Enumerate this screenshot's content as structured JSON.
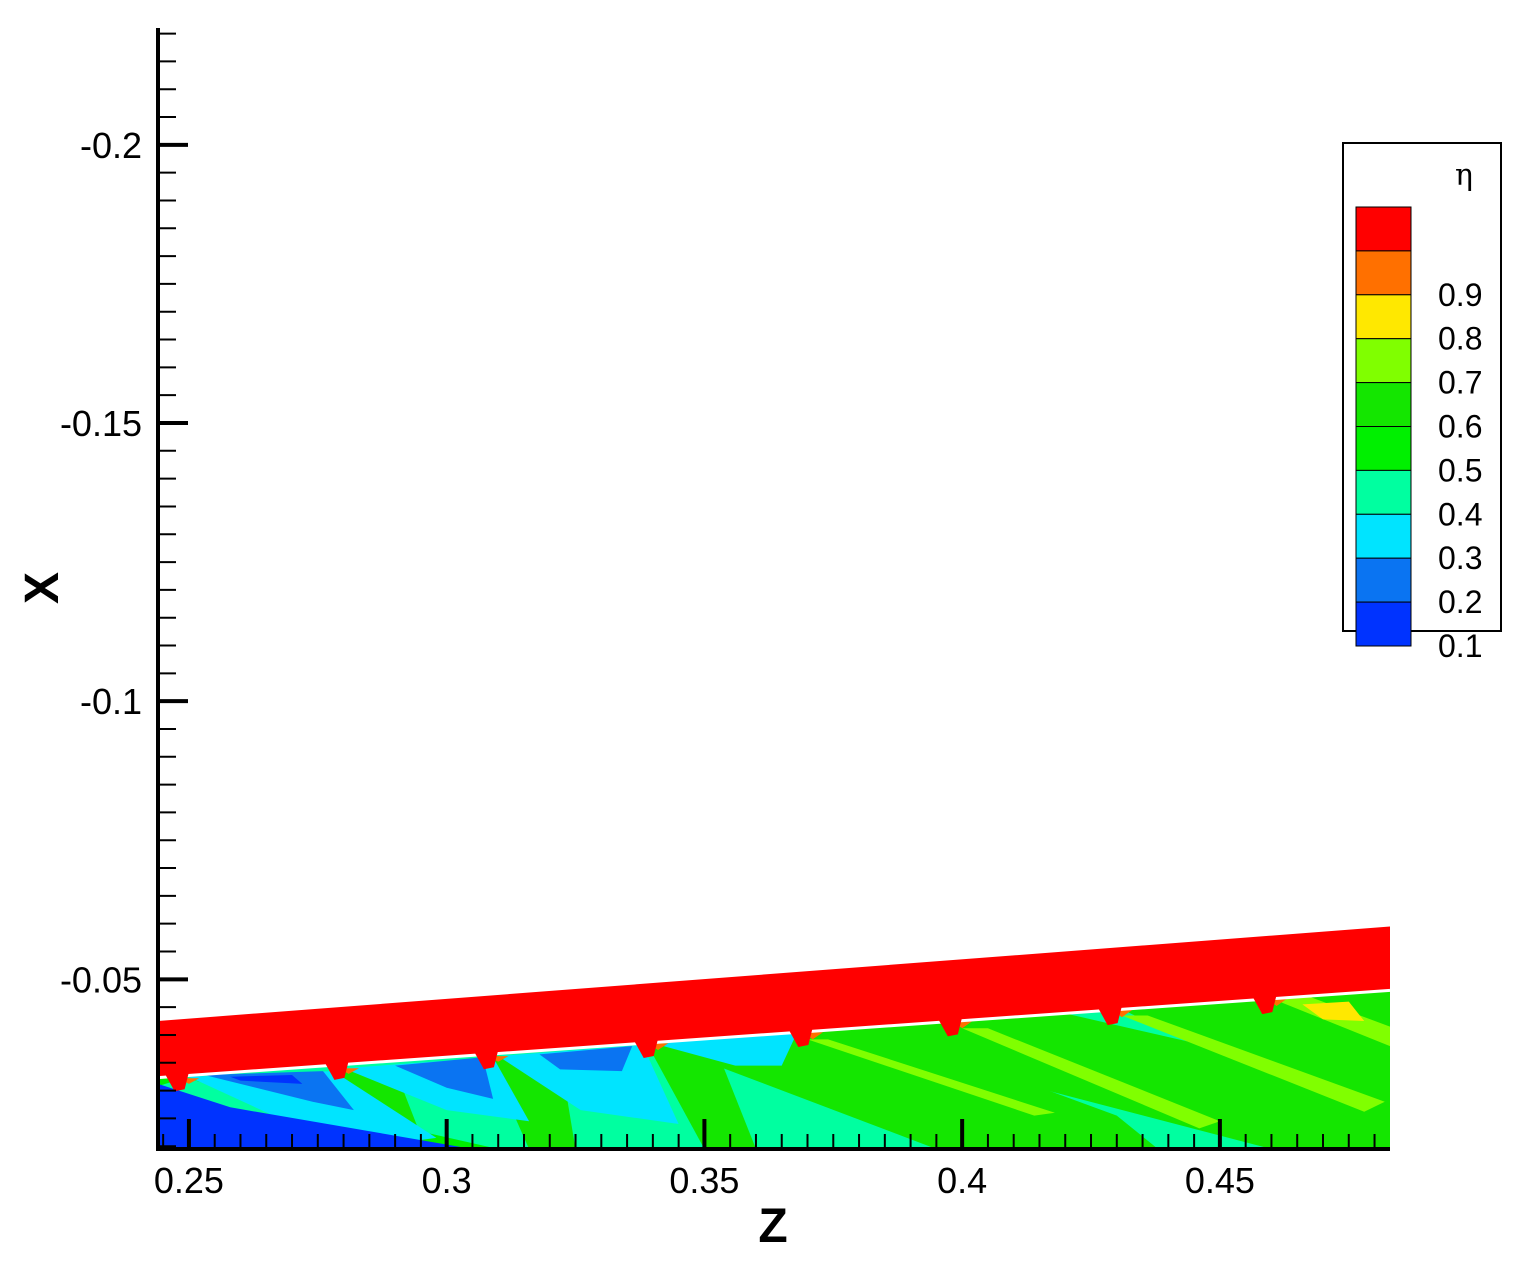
{
  "chart_data": {
    "type": "heatmap",
    "title": "",
    "xlabel": "Z",
    "ylabel": "X",
    "xlim": [
      0.244,
      0.483
    ],
    "ylim": [
      -0.0195,
      -0.221
    ],
    "y_axis_inverted": true,
    "x_major_ticks": [
      0.25,
      0.3,
      0.35,
      0.4,
      0.45
    ],
    "x_tick_labels": [
      "0.25",
      "0.3",
      "0.35",
      "0.4",
      "0.45"
    ],
    "y_major_ticks": [
      -0.2,
      -0.15,
      -0.1,
      -0.05
    ],
    "y_tick_labels": [
      "-0.2",
      "-0.15",
      "-0.1",
      "-0.05"
    ],
    "legend": {
      "title": "η",
      "placement": "right",
      "levels": [
        {
          "label": "0.1",
          "color": "#0033ff"
        },
        {
          "label": "0.2",
          "color": "#0a74f2"
        },
        {
          "label": "0.3",
          "color": "#00e4ff"
        },
        {
          "label": "0.4",
          "color": "#00ffa0"
        },
        {
          "label": "0.5",
          "color": "#00f000"
        },
        {
          "label": "0.6",
          "color": "#14e600"
        },
        {
          "label": "0.7",
          "color": "#80ff00"
        },
        {
          "label": "0.8",
          "color": "#ffe800"
        },
        {
          "label": "0.9",
          "color": "#ff7000"
        },
        {
          "label": "",
          "color": "#ff0000"
        }
      ]
    },
    "wall_band": {
      "color": "#ff0000",
      "bottom_line": [
        [
          0.244,
          -0.0325
        ],
        [
          0.483,
          -0.0482
        ]
      ],
      "top_line": [
        [
          0.244,
          -0.0425
        ],
        [
          0.483,
          -0.0595
        ]
      ]
    },
    "holes_z": [
      0.248,
      0.279,
      0.308,
      0.339,
      0.369,
      0.398,
      0.429,
      0.459
    ],
    "field_regions": [
      {
        "eta": 0.4,
        "points": [
          [
            0.244,
            -0.0195
          ],
          [
            0.483,
            -0.0195
          ],
          [
            0.483,
            -0.0482
          ],
          [
            0.244,
            -0.0325
          ]
        ]
      },
      {
        "eta": 0.6,
        "points": [
          [
            0.338,
            -0.0395
          ],
          [
            0.377,
            -0.0435
          ],
          [
            0.43,
            -0.0255
          ],
          [
            0.438,
            -0.0195
          ],
          [
            0.395,
            -0.0195
          ]
        ]
      },
      {
        "eta": 0.6,
        "points": [
          [
            0.369,
            -0.0415
          ],
          [
            0.41,
            -0.046
          ],
          [
            0.483,
            -0.0305
          ],
          [
            0.483,
            -0.0195
          ],
          [
            0.46,
            -0.0195
          ]
        ]
      },
      {
        "eta": 0.6,
        "points": [
          [
            0.429,
            -0.0455
          ],
          [
            0.462,
            -0.0478
          ],
          [
            0.483,
            -0.045
          ],
          [
            0.483,
            -0.0215
          ]
        ]
      },
      {
        "eta": 0.6,
        "points": [
          [
            0.461,
            -0.0482
          ],
          [
            0.483,
            -0.0482
          ],
          [
            0.483,
            -0.044
          ]
        ]
      },
      {
        "eta": 0.6,
        "points": [
          [
            0.339,
            -0.0382
          ],
          [
            0.352,
            -0.0382
          ],
          [
            0.36,
            -0.0195
          ],
          [
            0.35,
            -0.0195
          ]
        ]
      },
      {
        "eta": 0.6,
        "points": [
          [
            0.308,
            -0.0362
          ],
          [
            0.322,
            -0.0362
          ],
          [
            0.325,
            -0.0195
          ],
          [
            0.316,
            -0.0195
          ]
        ]
      },
      {
        "eta": 0.6,
        "points": [
          [
            0.279,
            -0.0338
          ],
          [
            0.29,
            -0.0338
          ],
          [
            0.296,
            -0.0195
          ],
          [
            0.286,
            -0.0195
          ]
        ]
      },
      {
        "eta": 0.7,
        "points": [
          [
            0.4,
            -0.0412
          ],
          [
            0.405,
            -0.0412
          ],
          [
            0.45,
            -0.0245
          ],
          [
            0.446,
            -0.0232
          ]
        ]
      },
      {
        "eta": 0.7,
        "points": [
          [
            0.431,
            -0.0435
          ],
          [
            0.436,
            -0.0435
          ],
          [
            0.482,
            -0.028
          ],
          [
            0.478,
            -0.0262
          ]
        ]
      },
      {
        "eta": 0.7,
        "points": [
          [
            0.461,
            -0.0462
          ],
          [
            0.467,
            -0.047
          ],
          [
            0.483,
            -0.0415
          ],
          [
            0.483,
            -0.038
          ]
        ]
      },
      {
        "eta": 0.7,
        "points": [
          [
            0.37,
            -0.0392
          ],
          [
            0.374,
            -0.0392
          ],
          [
            0.418,
            -0.026
          ],
          [
            0.414,
            -0.0255
          ]
        ]
      },
      {
        "eta": 0.8,
        "points": [
          [
            0.466,
            -0.0455
          ],
          [
            0.475,
            -0.046
          ],
          [
            0.478,
            -0.0425
          ],
          [
            0.47,
            -0.0428
          ]
        ]
      },
      {
        "eta": 0.5,
        "points": [
          [
            0.244,
            -0.0325
          ],
          [
            0.248,
            -0.0325
          ],
          [
            0.31,
            -0.0195
          ],
          [
            0.296,
            -0.0195
          ],
          [
            0.244,
            -0.021
          ]
        ]
      },
      {
        "eta": 0.4,
        "points": [
          [
            0.244,
            -0.0308
          ],
          [
            0.249,
            -0.0322
          ],
          [
            0.296,
            -0.023
          ],
          [
            0.292,
            -0.0205
          ],
          [
            0.244,
            -0.0218
          ]
        ]
      },
      {
        "eta": 0.3,
        "points": [
          [
            0.25,
            -0.0325
          ],
          [
            0.278,
            -0.0335
          ],
          [
            0.298,
            -0.0215
          ],
          [
            0.29,
            -0.0205
          ],
          [
            0.268,
            -0.0248
          ]
        ]
      },
      {
        "eta": 0.3,
        "points": [
          [
            0.28,
            -0.034
          ],
          [
            0.309,
            -0.036
          ],
          [
            0.316,
            -0.0245
          ],
          [
            0.3,
            -0.0265
          ]
        ]
      },
      {
        "eta": 0.3,
        "points": [
          [
            0.31,
            -0.0362
          ],
          [
            0.338,
            -0.0382
          ],
          [
            0.345,
            -0.024
          ],
          [
            0.326,
            -0.0265
          ]
        ]
      },
      {
        "eta": 0.3,
        "points": [
          [
            0.34,
            -0.0385
          ],
          [
            0.368,
            -0.0405
          ],
          [
            0.365,
            -0.0345
          ],
          [
            0.356,
            -0.0345
          ]
        ]
      },
      {
        "eta": 0.2,
        "points": [
          [
            0.253,
            -0.0328
          ],
          [
            0.276,
            -0.0335
          ],
          [
            0.282,
            -0.0265
          ],
          [
            0.274,
            -0.028
          ]
        ]
      },
      {
        "eta": 0.2,
        "points": [
          [
            0.29,
            -0.0345
          ],
          [
            0.307,
            -0.036
          ],
          [
            0.309,
            -0.0285
          ],
          [
            0.3,
            -0.0305
          ]
        ]
      },
      {
        "eta": 0.2,
        "points": [
          [
            0.318,
            -0.0365
          ],
          [
            0.336,
            -0.038
          ],
          [
            0.334,
            -0.0335
          ],
          [
            0.322,
            -0.0338
          ]
        ]
      },
      {
        "eta": 0.1,
        "points": [
          [
            0.244,
            -0.0195
          ],
          [
            0.305,
            -0.0195
          ],
          [
            0.258,
            -0.027
          ],
          [
            0.244,
            -0.0312
          ]
        ]
      },
      {
        "eta": 0.1,
        "points": [
          [
            0.258,
            -0.0325
          ],
          [
            0.27,
            -0.0328
          ],
          [
            0.272,
            -0.0312
          ],
          [
            0.26,
            -0.0318
          ]
        ]
      },
      {
        "eta": 0.9,
        "points": [
          [
            0.248,
            -0.0322
          ],
          [
            0.252,
            -0.0322
          ],
          [
            0.25,
            -0.0312
          ]
        ]
      },
      {
        "eta": 0.9,
        "points": [
          [
            0.279,
            -0.034
          ],
          [
            0.283,
            -0.034
          ],
          [
            0.281,
            -0.033
          ]
        ]
      },
      {
        "eta": 0.9,
        "points": [
          [
            0.308,
            -0.0362
          ],
          [
            0.312,
            -0.0362
          ],
          [
            0.31,
            -0.0352
          ]
        ]
      },
      {
        "eta": 0.9,
        "points": [
          [
            0.339,
            -0.0385
          ],
          [
            0.343,
            -0.0385
          ],
          [
            0.341,
            -0.0373
          ]
        ]
      },
      {
        "eta": 0.9,
        "points": [
          [
            0.369,
            -0.0405
          ],
          [
            0.373,
            -0.0405
          ],
          [
            0.371,
            -0.0392
          ]
        ]
      },
      {
        "eta": 0.9,
        "points": [
          [
            0.398,
            -0.0425
          ],
          [
            0.402,
            -0.0425
          ],
          [
            0.4,
            -0.0412
          ]
        ]
      },
      {
        "eta": 0.9,
        "points": [
          [
            0.429,
            -0.0445
          ],
          [
            0.433,
            -0.0445
          ],
          [
            0.431,
            -0.0432
          ]
        ]
      },
      {
        "eta": 0.9,
        "points": [
          [
            0.459,
            -0.0465
          ],
          [
            0.463,
            -0.0465
          ],
          [
            0.461,
            -0.0452
          ]
        ]
      }
    ]
  }
}
